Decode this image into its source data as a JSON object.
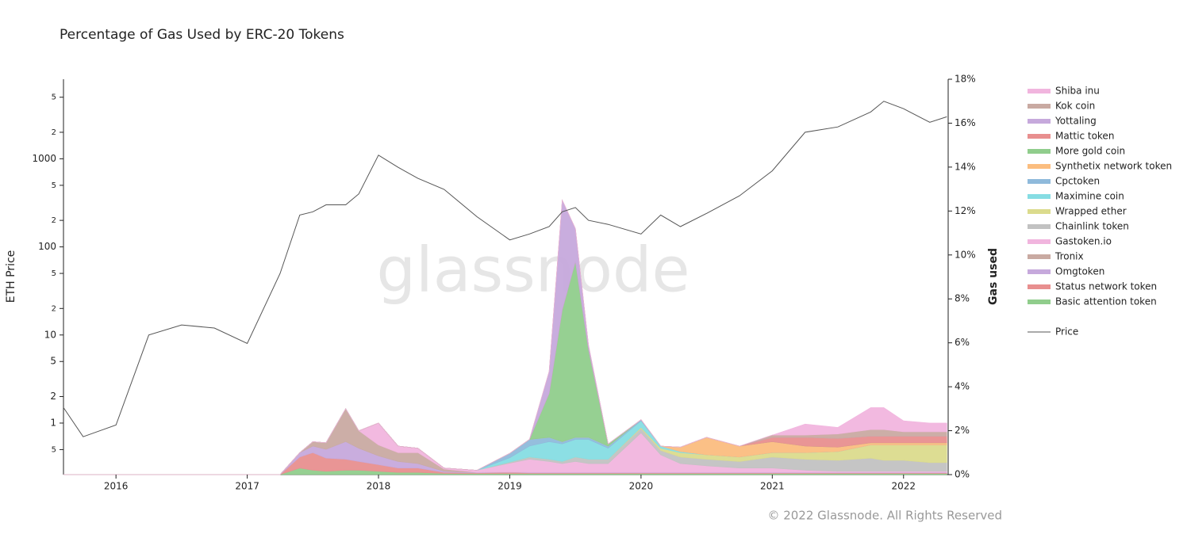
{
  "chart_data": {
    "type": "area",
    "title": "Percentage of Gas Used by ERC-20 Tokens",
    "y_label": "ETH Price",
    "y2_label": "Gas used",
    "watermark": "glassnode",
    "footer": "© 2022 Glassnode. All Rights Reserved",
    "x": [
      2015.6,
      2015.75,
      2016.0,
      2016.25,
      2016.5,
      2016.75,
      2017.0,
      2017.25,
      2017.4,
      2017.5,
      2017.6,
      2017.75,
      2017.85,
      2018.0,
      2018.15,
      2018.3,
      2018.5,
      2018.75,
      2019.0,
      2019.15,
      2019.3,
      2019.4,
      2019.5,
      2019.6,
      2019.75,
      2020.0,
      2020.15,
      2020.3,
      2020.5,
      2020.75,
      2021.0,
      2021.25,
      2021.5,
      2021.75,
      2021.85,
      2022.0,
      2022.2,
      2022.33
    ],
    "xlim": [
      2015.6,
      2022.34
    ],
    "xticks": [
      2016,
      2017,
      2018,
      2019,
      2020,
      2021,
      2022
    ],
    "ylog": true,
    "ylim": [
      0.26,
      8000
    ],
    "yticks": [
      {
        "value": 0.5,
        "label": "5"
      },
      1,
      2,
      5,
      10,
      {
        "value": 20,
        "label": "2"
      },
      {
        "value": 50,
        "label": "5"
      },
      100,
      {
        "value": 200,
        "label": "2"
      },
      {
        "value": 500,
        "label": "5"
      },
      1000,
      {
        "value": 2000,
        "label": "2"
      },
      {
        "value": 5000,
        "label": "5"
      }
    ],
    "y2lim": [
      0,
      18
    ],
    "y2ticks": [
      {
        "value": 0,
        "label": "0%"
      },
      {
        "value": 2,
        "label": "2%"
      },
      {
        "value": 4,
        "label": "4%"
      },
      {
        "value": 6,
        "label": "6%"
      },
      {
        "value": 8,
        "label": "8%"
      },
      {
        "value": 10,
        "label": "10%"
      },
      {
        "value": 12,
        "label": "12%"
      },
      {
        "value": 14,
        "label": "14%"
      },
      {
        "value": 16,
        "label": "16%"
      },
      {
        "value": 18,
        "label": "18%"
      }
    ],
    "series": [
      {
        "name": "Shiba inu",
        "color": "#f1b5de",
        "axis": "y2",
        "values": [
          0,
          0,
          0,
          0,
          0,
          0,
          0,
          0,
          0,
          0,
          0,
          0,
          0,
          0,
          0,
          0,
          0,
          0,
          0,
          0,
          0,
          0,
          0,
          0,
          0,
          0,
          0,
          0,
          0,
          0,
          0,
          0.5,
          0.3,
          1.0,
          1.0,
          0.5,
          0.4,
          0.4
        ]
      },
      {
        "name": "Kok coin",
        "color": "#c9aaa2",
        "axis": "y2",
        "values": [
          0,
          0,
          0,
          0,
          0,
          0,
          0,
          0,
          0,
          0,
          0,
          0,
          0,
          0,
          0,
          0,
          0,
          0,
          0,
          0,
          0,
          0,
          0,
          0,
          0,
          0,
          0,
          0,
          0,
          0,
          0.1,
          0.1,
          0.2,
          0.3,
          0.3,
          0.2,
          0.2,
          0.2
        ]
      },
      {
        "name": "Yottaling",
        "color": "#c6a9dc",
        "axis": "y2",
        "values": [
          0,
          0,
          0,
          0,
          0,
          0,
          0,
          0,
          0,
          0,
          0,
          0,
          0,
          0,
          0,
          0,
          0,
          0,
          0,
          0,
          1.0,
          5.0,
          1.5,
          0.2,
          0,
          0,
          0,
          0,
          0,
          0,
          0,
          0,
          0,
          0,
          0,
          0,
          0,
          0
        ]
      },
      {
        "name": "Mattic token",
        "color": "#e88f8f",
        "axis": "y2",
        "values": [
          0,
          0,
          0,
          0,
          0,
          0,
          0,
          0,
          0,
          0,
          0,
          0,
          0,
          0,
          0,
          0,
          0,
          0,
          0,
          0,
          0,
          0,
          0,
          0,
          0,
          0,
          0,
          0,
          0,
          0,
          0.2,
          0.4,
          0.4,
          0.3,
          0.3,
          0.3,
          0.3,
          0.3
        ]
      },
      {
        "name": "More gold coin",
        "color": "#90cd8c",
        "axis": "y2",
        "values": [
          0,
          0,
          0,
          0,
          0,
          0,
          0,
          0,
          0,
          0,
          0,
          0,
          0,
          0,
          0,
          0,
          0,
          0,
          0,
          0,
          2.0,
          6.0,
          8.0,
          4.0,
          0.1,
          0,
          0,
          0,
          0,
          0,
          0,
          0,
          0,
          0,
          0,
          0,
          0,
          0
        ]
      },
      {
        "name": "Synthetix network token",
        "color": "#fbbd7f",
        "axis": "y2",
        "values": [
          0,
          0,
          0,
          0,
          0,
          0,
          0,
          0,
          0,
          0,
          0,
          0,
          0,
          0,
          0,
          0,
          0,
          0,
          0,
          0,
          0,
          0,
          0,
          0,
          0,
          0,
          0,
          0.2,
          0.8,
          0.5,
          0.5,
          0.3,
          0.2,
          0.1,
          0.1,
          0.1,
          0.1,
          0.1
        ]
      },
      {
        "name": "Cpctoken",
        "color": "#8fbadb",
        "axis": "y2",
        "values": [
          0,
          0,
          0,
          0,
          0,
          0,
          0,
          0,
          0,
          0,
          0,
          0,
          0,
          0,
          0,
          0,
          0,
          0,
          0.2,
          0.3,
          0.2,
          0.1,
          0.1,
          0.1,
          0.1,
          0.05,
          0,
          0,
          0,
          0,
          0,
          0,
          0,
          0,
          0,
          0,
          0,
          0
        ]
      },
      {
        "name": "Maximine coin",
        "color": "#86dde3",
        "axis": "y2",
        "values": [
          0,
          0,
          0,
          0,
          0,
          0,
          0,
          0,
          0,
          0,
          0,
          0,
          0,
          0,
          0,
          0,
          0,
          0,
          0.2,
          0.5,
          0.8,
          0.8,
          0.8,
          0.9,
          0.5,
          0.3,
          0.1,
          0.05,
          0,
          0,
          0,
          0,
          0,
          0,
          0,
          0,
          0,
          0
        ]
      },
      {
        "name": "Wrapped ether",
        "color": "#dbdb8d",
        "axis": "y2",
        "values": [
          0,
          0,
          0,
          0,
          0,
          0,
          0,
          0,
          0,
          0,
          0,
          0,
          0,
          0,
          0,
          0,
          0,
          0,
          0,
          0,
          0,
          0,
          0,
          0,
          0,
          0.05,
          0.1,
          0.2,
          0.2,
          0.2,
          0.2,
          0.3,
          0.4,
          0.6,
          0.7,
          0.7,
          0.8,
          0.8
        ]
      },
      {
        "name": "Chainlink token",
        "color": "#c2c2c2",
        "axis": "y2",
        "values": [
          0,
          0,
          0,
          0,
          0,
          0,
          0,
          0,
          0,
          0,
          0,
          0,
          0,
          0,
          0,
          0,
          0,
          0,
          0.05,
          0.1,
          0.1,
          0.1,
          0.2,
          0.2,
          0.2,
          0.2,
          0.2,
          0.3,
          0.3,
          0.3,
          0.5,
          0.5,
          0.5,
          0.6,
          0.5,
          0.5,
          0.4,
          0.4
        ]
      },
      {
        "name": "Gastoken.io",
        "color": "#f1b5de",
        "axis": "y2",
        "values": [
          0,
          0,
          0,
          0,
          0,
          0,
          0,
          0,
          0,
          0,
          0,
          0,
          0,
          1.0,
          0.3,
          0.2,
          0.05,
          0.1,
          0.4,
          0.6,
          0.5,
          0.4,
          0.5,
          0.4,
          0.4,
          1.8,
          0.8,
          0.4,
          0.3,
          0.2,
          0.2,
          0.1,
          0.05,
          0.05,
          0.05,
          0.05,
          0.05,
          0.05
        ]
      },
      {
        "name": "Tronix",
        "color": "#c9aaa2",
        "axis": "y2",
        "values": [
          0,
          0,
          0,
          0,
          0,
          0,
          0,
          0,
          0,
          0.2,
          0.3,
          1.5,
          0.8,
          0.5,
          0.4,
          0.5,
          0.1,
          0,
          0,
          0,
          0,
          0,
          0,
          0,
          0,
          0,
          0,
          0,
          0,
          0,
          0,
          0,
          0,
          0,
          0,
          0,
          0,
          0
        ]
      },
      {
        "name": "Omgtoken",
        "color": "#c6a9dc",
        "axis": "y2",
        "values": [
          0,
          0,
          0,
          0,
          0,
          0,
          0,
          0,
          0.2,
          0.3,
          0.4,
          0.8,
          0.6,
          0.4,
          0.3,
          0.2,
          0.05,
          0.02,
          0.02,
          0.02,
          0.02,
          0.02,
          0.02,
          0.02,
          0.02,
          0.02,
          0.02,
          0.02,
          0.02,
          0.02,
          0.02,
          0.02,
          0.02,
          0.02,
          0.02,
          0.02,
          0.02,
          0.02
        ]
      },
      {
        "name": "Status network token",
        "color": "#e88f8f",
        "axis": "y2",
        "values": [
          0,
          0,
          0,
          0,
          0,
          0,
          0,
          0,
          0.5,
          0.8,
          0.6,
          0.5,
          0.4,
          0.3,
          0.2,
          0.2,
          0.05,
          0.03,
          0.05,
          0.03,
          0.03,
          0.03,
          0.03,
          0.03,
          0.03,
          0.03,
          0.03,
          0.03,
          0.03,
          0.03,
          0.03,
          0.03,
          0.03,
          0.03,
          0.03,
          0.03,
          0.03,
          0.03
        ]
      },
      {
        "name": "Basic attention token",
        "color": "#90cd8c",
        "axis": "y2",
        "values": [
          0,
          0,
          0,
          0,
          0,
          0,
          0,
          0,
          0.3,
          0.2,
          0.15,
          0.2,
          0.2,
          0.15,
          0.1,
          0.1,
          0.05,
          0.05,
          0.05,
          0.05,
          0.05,
          0.05,
          0.05,
          0.05,
          0.05,
          0.05,
          0.05,
          0.05,
          0.05,
          0.05,
          0.05,
          0.05,
          0.05,
          0.05,
          0.05,
          0.05,
          0.05,
          0.05
        ]
      },
      {
        "name": "Price",
        "color": "#555555",
        "axis": "y",
        "line": true,
        "values": [
          1.5,
          0.7,
          0.95,
          10,
          13,
          12,
          8,
          50,
          230,
          250,
          300,
          300,
          400,
          1100,
          800,
          600,
          450,
          220,
          120,
          140,
          170,
          250,
          280,
          200,
          180,
          140,
          230,
          170,
          240,
          380,
          730,
          2000,
          2300,
          3400,
          4500,
          3700,
          2600,
          3000
        ]
      }
    ]
  }
}
